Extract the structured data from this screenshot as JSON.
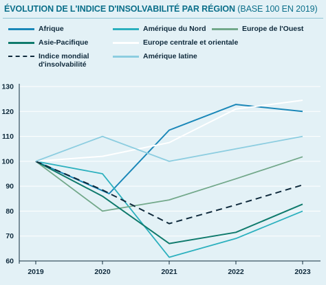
{
  "header": {
    "title_main": "ÉVOLUTION DE L'INDICE D'INSOLVABILITÉ PAR RÉGION",
    "title_sub": "(BASE 100 EN 2019)"
  },
  "legend": [
    {
      "label": "Afrique",
      "color": "#1a87b8",
      "dashed": false
    },
    {
      "label": "Amérique du Nord",
      "color": "#2bb0be",
      "dashed": false
    },
    {
      "label": "Europe de l'Ouest",
      "color": "#72a88a",
      "dashed": false
    },
    {
      "label": "Asie-Pacifique",
      "color": "#0f7a6c",
      "dashed": false
    },
    {
      "label": "Europe centrale et orientale",
      "color": "#ffffff",
      "dashed": false
    },
    {
      "label": "Indice mondial d'insolvabilité",
      "color": "#0f2a3c",
      "dashed": true
    },
    {
      "label": "Amérique latine",
      "color": "#8ccde0",
      "dashed": false
    }
  ],
  "chart_data": {
    "type": "line",
    "title": "ÉVOLUTION DE L'INDICE D'INSOLVABILITÉ PAR RÉGION (BASE 100 EN 2019)",
    "x": [
      "2019",
      "2020",
      "2021",
      "2022",
      "2023"
    ],
    "ylim": [
      60,
      130
    ],
    "yticks": [
      "60",
      "70",
      "80",
      "90",
      "100",
      "110",
      "120",
      "130"
    ],
    "grid": "horizontal",
    "legend_position": "top",
    "series": [
      {
        "name": "Afrique",
        "color": "#1a87b8",
        "dashed": false,
        "width": 2,
        "x": [
          2019,
          2020.1,
          2021,
          2022,
          2023
        ],
        "values": [
          100,
          87,
          112.5,
          122.8,
          120
        ]
      },
      {
        "name": "Amérique du Nord",
        "color": "#2bb0be",
        "dashed": false,
        "width": 1.8,
        "x": [
          2019,
          2020,
          2021,
          2022,
          2023
        ],
        "values": [
          100,
          95,
          61.5,
          69,
          80
        ]
      },
      {
        "name": "Europe de l'Ouest",
        "color": "#72a88a",
        "dashed": false,
        "width": 1.8,
        "x": [
          2019,
          2020,
          2021,
          2022,
          2023
        ],
        "values": [
          100,
          80,
          84.5,
          93,
          101.8
        ]
      },
      {
        "name": "Asie-Pacifique",
        "color": "#0f7a6c",
        "dashed": false,
        "width": 2,
        "x": [
          2019,
          2020,
          2021,
          2022,
          2023
        ],
        "values": [
          100,
          86,
          67,
          71.5,
          82.8
        ]
      },
      {
        "name": "Europe centrale et orientale",
        "color": "#ffffff",
        "dashed": false,
        "width": 2,
        "x": [
          2019,
          2020,
          2021,
          2022,
          2023
        ],
        "values": [
          100,
          102,
          107.5,
          121,
          124.5
        ]
      },
      {
        "name": "Indice mondial d'insolvabilité",
        "color": "#0f2a3c",
        "dashed": true,
        "width": 2,
        "x": [
          2019,
          2020,
          2021,
          2022,
          2023
        ],
        "values": [
          100,
          88.5,
          75,
          82.5,
          90.5
        ]
      },
      {
        "name": "Amérique latine",
        "color": "#8ccde0",
        "dashed": false,
        "width": 1.8,
        "x": [
          2019,
          2020,
          2021,
          2022,
          2023
        ],
        "values": [
          100,
          110,
          100,
          105,
          110
        ]
      }
    ]
  }
}
